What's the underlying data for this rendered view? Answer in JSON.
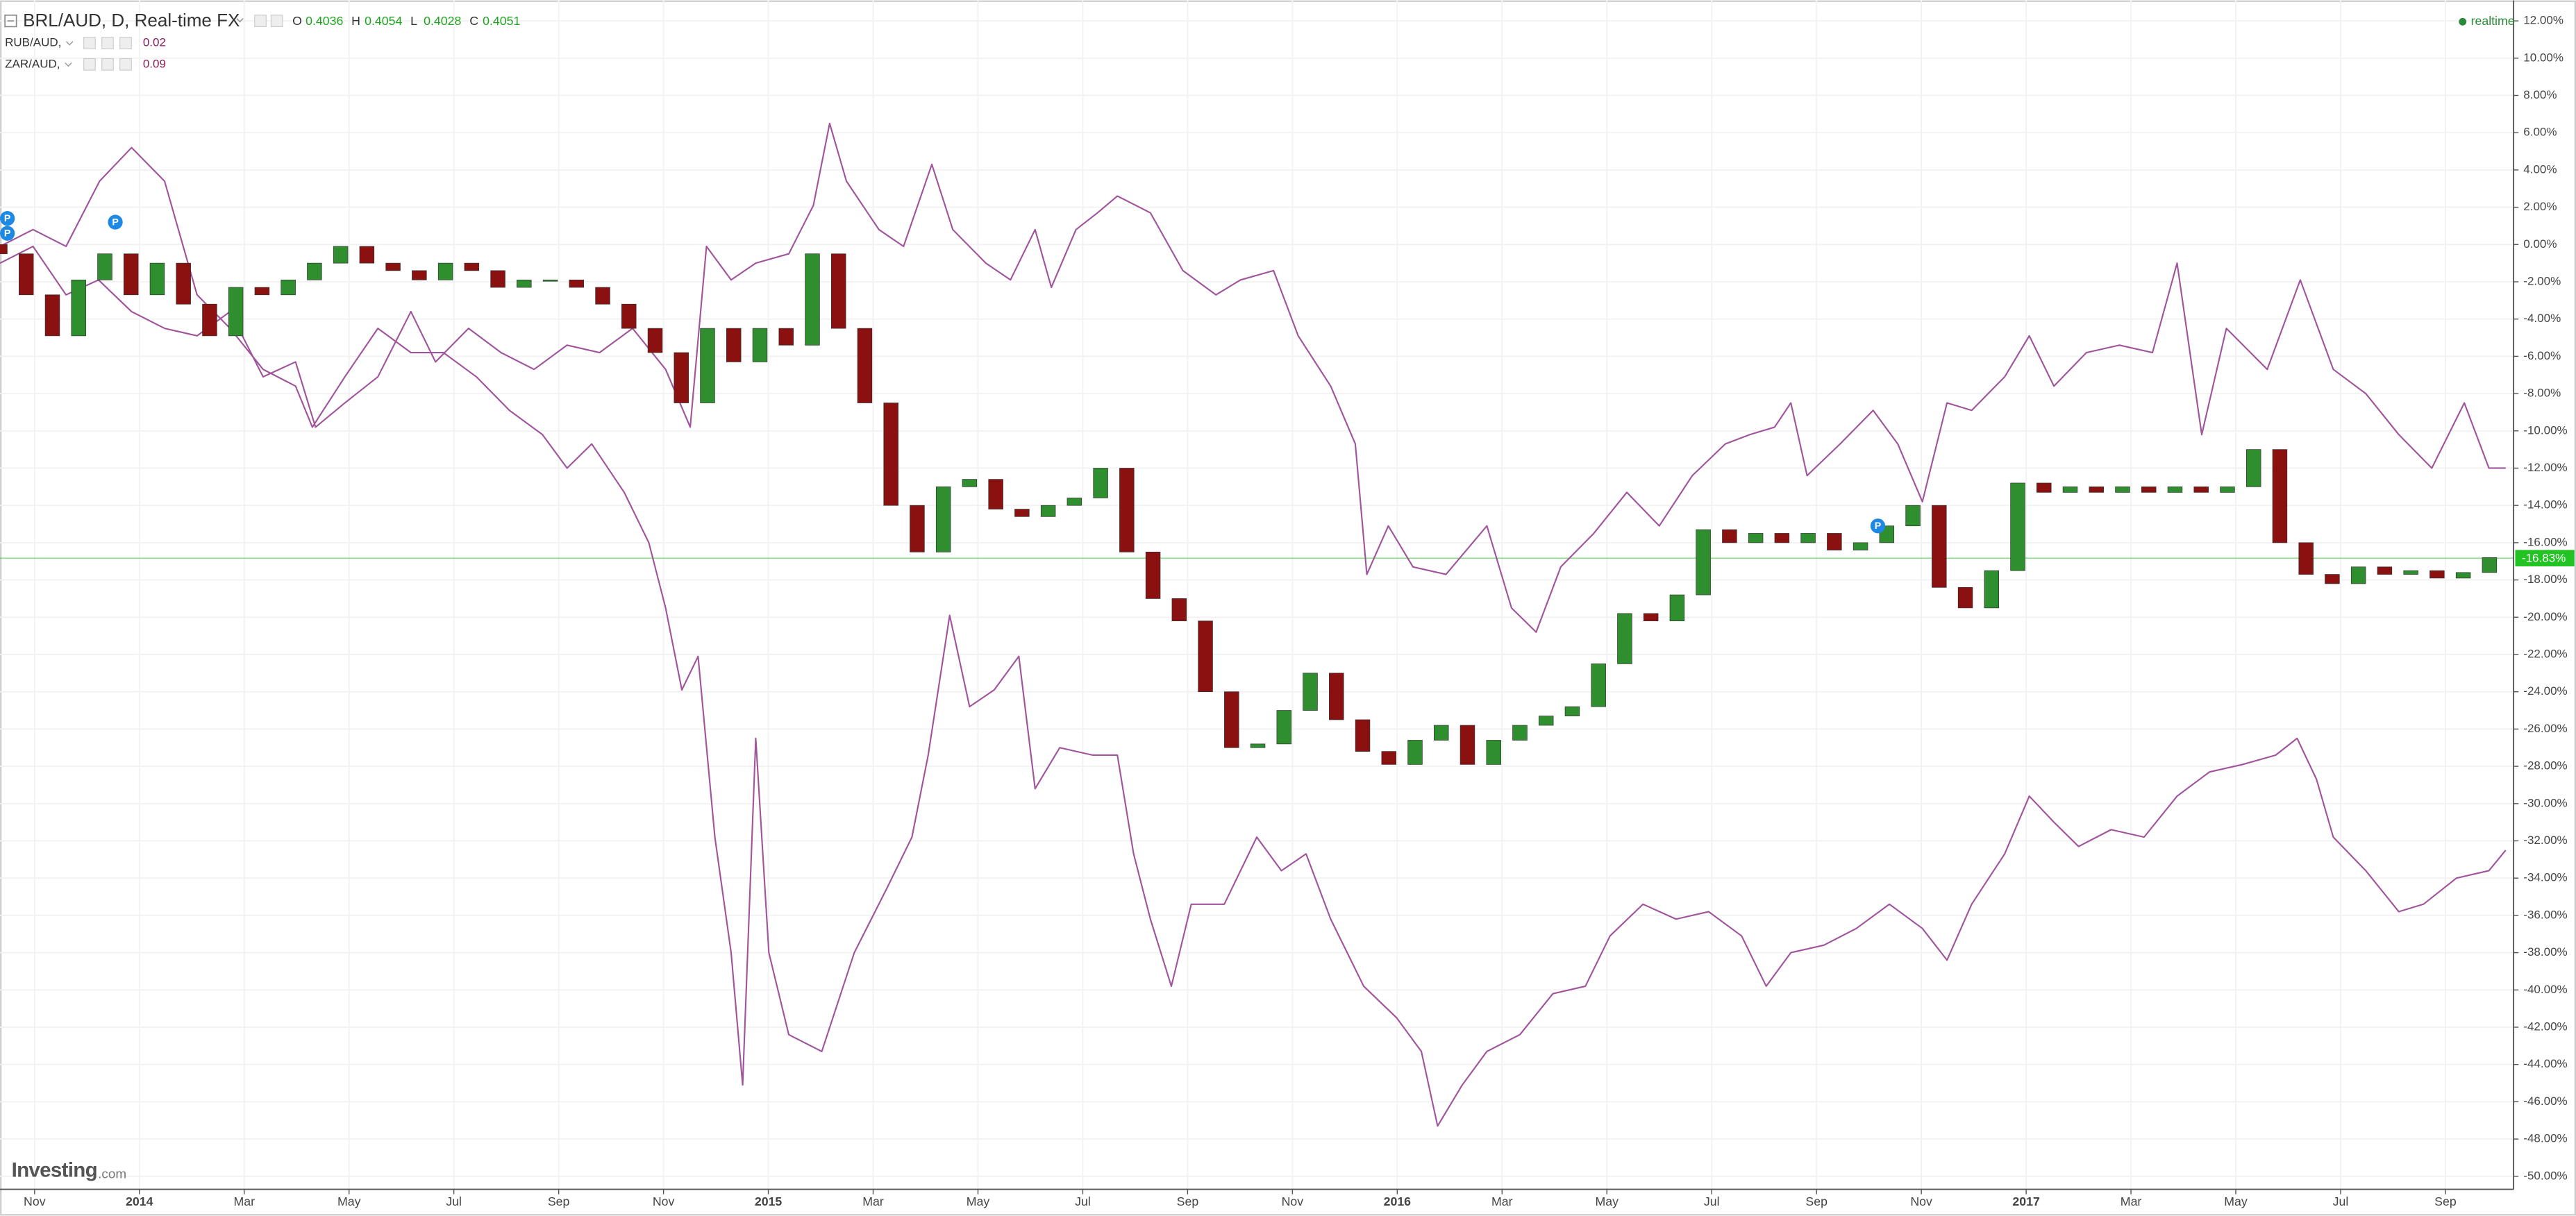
{
  "chart_data": {
    "type": "candlestick",
    "xlim": [
      -0.66,
      47.3
    ],
    "ylim": [
      -50.7,
      13.1
    ],
    "grid": true,
    "xticks": [
      {
        "value": 0,
        "label": "Nov"
      },
      {
        "value": 2,
        "label": "2014"
      },
      {
        "value": 4,
        "label": "Mar"
      },
      {
        "value": 6,
        "label": "May"
      },
      {
        "value": 8,
        "label": "Jul"
      },
      {
        "value": 10,
        "label": "Sep"
      },
      {
        "value": 12,
        "label": "Nov"
      },
      {
        "value": 14,
        "label": "2015"
      },
      {
        "value": 16,
        "label": "Mar"
      },
      {
        "value": 18,
        "label": "May"
      },
      {
        "value": 20,
        "label": "Jul"
      },
      {
        "value": 22,
        "label": "Sep"
      },
      {
        "value": 24,
        "label": "Nov"
      },
      {
        "value": 26,
        "label": "2016"
      },
      {
        "value": 28,
        "label": "Mar"
      },
      {
        "value": 30,
        "label": "May"
      },
      {
        "value": 32,
        "label": "Jul"
      },
      {
        "value": 34,
        "label": "Sep"
      },
      {
        "value": 36,
        "label": "Nov"
      },
      {
        "value": 38,
        "label": "2017"
      },
      {
        "value": 40,
        "label": "Mar"
      },
      {
        "value": 42,
        "label": "May"
      },
      {
        "value": 44,
        "label": "Jul"
      },
      {
        "value": 46,
        "label": "Sep"
      }
    ],
    "yticks": [
      {
        "value": 12,
        "label": "12.00%"
      },
      {
        "value": 10,
        "label": "10.00%"
      },
      {
        "value": 8,
        "label": "8.00%"
      },
      {
        "value": 6,
        "label": "6.00%"
      },
      {
        "value": 4,
        "label": "4.00%"
      },
      {
        "value": 2,
        "label": "2.00%"
      },
      {
        "value": 0,
        "label": "0.00%"
      },
      {
        "value": -2,
        "label": "-2.00%"
      },
      {
        "value": -4,
        "label": "-4.00%"
      },
      {
        "value": -6,
        "label": "-6.00%"
      },
      {
        "value": -8,
        "label": "-8.00%"
      },
      {
        "value": -10,
        "label": "-10.00%"
      },
      {
        "value": -12,
        "label": "-12.00%"
      },
      {
        "value": -14,
        "label": "-14.00%"
      },
      {
        "value": -16,
        "label": "-16.00%"
      },
      {
        "value": -18,
        "label": "-18.00%"
      },
      {
        "value": -20,
        "label": "-20.00%"
      },
      {
        "value": -22,
        "label": "-22.00%"
      },
      {
        "value": -24,
        "label": "-24.00%"
      },
      {
        "value": -26,
        "label": "-26.00%"
      },
      {
        "value": -28,
        "label": "-28.00%"
      },
      {
        "value": -30,
        "label": "-30.00%"
      },
      {
        "value": -32,
        "label": "-32.00%"
      },
      {
        "value": -34,
        "label": "-34.00%"
      },
      {
        "value": -36,
        "label": "-36.00%"
      },
      {
        "value": -38,
        "label": "-38.00%"
      },
      {
        "value": -40,
        "label": "-40.00%"
      },
      {
        "value": -42,
        "label": "-42.00%"
      },
      {
        "value": -44,
        "label": "-44.00%"
      },
      {
        "value": -46,
        "label": "-46.00%"
      },
      {
        "value": -48,
        "label": "-48.00%"
      },
      {
        "value": -50,
        "label": "-50.00%"
      }
    ],
    "last_value": {
      "value": -16.83,
      "label": "-16.83%",
      "color": "#22c322"
    },
    "status": "realtime",
    "watermark": [
      "Investing",
      ".com"
    ],
    "ohlc": [
      {
        "label": "O",
        "value": 0.4036
      },
      {
        "label": "H",
        "value": 0.4054
      },
      {
        "label": "L",
        "value": 0.4028
      },
      {
        "label": "C",
        "value": 0.4051
      }
    ],
    "markers": [
      {
        "x": -0.53,
        "y": 1.4,
        "label": "P"
      },
      {
        "x": -0.53,
        "y": 0.6,
        "label": "P"
      },
      {
        "x": 1.54,
        "y": 1.2,
        "label": "P"
      },
      {
        "x": 35.17,
        "y": -15.1,
        "label": "P"
      }
    ],
    "series": [
      {
        "name": "BRL/AUD, D, Real-time FX",
        "type": "candlestick",
        "up_color": "#2f8f2f",
        "down_color": "#8b1010",
        "x": [
          -0.66,
          -0.16,
          0.34,
          0.84,
          1.34,
          1.84,
          2.34,
          2.84,
          3.34,
          3.84,
          4.34,
          4.84,
          5.34,
          5.84,
          6.34,
          6.84,
          7.34,
          7.84,
          8.34,
          8.84,
          9.34,
          9.84,
          10.34,
          10.84,
          11.34,
          11.84,
          12.34,
          12.84,
          13.34,
          13.84,
          14.34,
          14.84,
          15.34,
          15.84,
          16.34,
          16.84,
          17.34,
          17.84,
          18.34,
          18.84,
          19.34,
          19.84,
          20.34,
          20.84,
          21.34,
          21.84,
          22.34,
          22.84,
          23.34,
          23.84,
          24.34,
          24.84,
          25.34,
          25.84,
          26.34,
          26.84,
          27.34,
          27.84,
          28.34,
          28.84,
          29.34,
          29.84,
          30.34,
          30.84,
          31.34,
          31.84,
          32.34,
          32.84,
          33.34,
          33.84,
          34.34,
          34.84,
          35.34,
          35.84,
          36.34,
          36.84,
          37.34,
          37.84,
          38.34,
          38.84,
          39.34,
          39.84,
          40.34,
          40.84,
          41.34,
          41.84,
          42.34,
          42.84,
          43.34,
          43.84,
          44.34,
          44.84,
          45.34,
          45.84,
          46.34,
          46.84
        ],
        "open": [
          0,
          -0.5,
          -2.7,
          -4.9,
          -1.9,
          -0.5,
          -2.7,
          -1.0,
          -3.2,
          -4.9,
          -2.3,
          -2.7,
          -1.9,
          -1.0,
          -0.1,
          -1.0,
          -1.4,
          -1.9,
          -1.0,
          -1.4,
          -2.3,
          -1.9,
          -1.9,
          -2.3,
          -3.2,
          -4.5,
          -5.8,
          -8.5,
          -4.5,
          -6.3,
          -4.5,
          -5.4,
          -0.5,
          -4.5,
          -8.5,
          -14.0,
          -16.5,
          -13.0,
          -12.6,
          -14.2,
          -14.6,
          -14.0,
          -13.6,
          -12.0,
          -16.5,
          -19.0,
          -20.2,
          -24.0,
          -27.0,
          -26.8,
          -25.0,
          -23.0,
          -25.5,
          -27.2,
          -27.9,
          -26.6,
          -25.8,
          -27.9,
          -26.6,
          -25.8,
          -25.3,
          -24.8,
          -22.5,
          -19.8,
          -20.2,
          -18.8,
          -15.3,
          -16.0,
          -15.5,
          -16.0,
          -15.5,
          -16.4,
          -16.0,
          -15.1,
          -14.0,
          -18.4,
          -19.5,
          -17.5,
          -12.8,
          -13.3,
          -13.0,
          -13.3,
          -13.0,
          -13.3,
          -13.0,
          -13.3,
          -13.0,
          -11.0,
          -16.0,
          -17.7,
          -18.2,
          -17.3,
          -17.7,
          -17.5,
          -17.9,
          -17.6
        ],
        "close": [
          -0.5,
          -2.7,
          -4.9,
          -1.9,
          -0.5,
          -2.7,
          -1.0,
          -3.2,
          -4.9,
          -2.3,
          -2.7,
          -1.9,
          -1.0,
          -0.1,
          -1.0,
          -1.4,
          -1.9,
          -1.0,
          -1.4,
          -2.3,
          -1.9,
          -1.9,
          -2.3,
          -3.2,
          -4.5,
          -5.8,
          -8.5,
          -4.5,
          -6.3,
          -4.5,
          -5.4,
          -0.5,
          -4.5,
          -8.5,
          -14.0,
          -16.5,
          -13.0,
          -12.6,
          -14.2,
          -14.6,
          -14.0,
          -13.6,
          -12.0,
          -16.5,
          -19.0,
          -20.2,
          -24.0,
          -27.0,
          -26.8,
          -25.0,
          -23.0,
          -25.5,
          -27.2,
          -27.9,
          -26.6,
          -25.8,
          -27.9,
          -26.6,
          -25.8,
          -25.3,
          -24.8,
          -22.5,
          -19.8,
          -20.2,
          -18.8,
          -15.3,
          -16.0,
          -15.5,
          -16.0,
          -15.5,
          -16.4,
          -16.0,
          -15.1,
          -14.0,
          -18.4,
          -19.5,
          -17.5,
          -12.8,
          -13.3,
          -13.0,
          -13.3,
          -13.0,
          -13.3,
          -13.0,
          -13.3,
          -13.0,
          -11.0,
          -16.0,
          -17.7,
          -18.2,
          -17.3,
          -17.7,
          -17.5,
          -17.9,
          -17.6,
          -16.8
        ]
      },
      {
        "name": "RUB/AUD,",
        "type": "line",
        "color": "#a0549c",
        "legend_value": 0.02,
        "legend_color": "#8b1a5a",
        "x": [
          -0.66,
          -0.03,
          0.6,
          1.24,
          1.85,
          2.48,
          3.1,
          3.73,
          4.36,
          4.98,
          5.3,
          5.92,
          6.55,
          7.18,
          7.8,
          8.43,
          9.06,
          9.69,
          10.16,
          10.63,
          11.25,
          11.72,
          12.04,
          12.35,
          12.66,
          12.98,
          13.29,
          13.51,
          13.76,
          14.01,
          14.39,
          15.02,
          15.64,
          16.27,
          16.74,
          17.05,
          17.46,
          17.84,
          18.31,
          18.78,
          19.09,
          19.56,
          20.19,
          20.66,
          20.97,
          21.29,
          21.69,
          22.07,
          22.7,
          23.32,
          23.79,
          24.26,
          24.73,
          25.36,
          25.99,
          26.46,
          26.77,
          27.24,
          27.71,
          28.34,
          28.97,
          29.59,
          30.06,
          30.69,
          31.32,
          31.94,
          32.57,
          33.04,
          33.51,
          34.14,
          34.76,
          35.39,
          36.02,
          36.49,
          36.96,
          37.59,
          38.06,
          38.53,
          39.0,
          39.62,
          40.25,
          40.88,
          41.5,
          42.13,
          42.76,
          43.17,
          43.54,
          43.86,
          44.48,
          45.11,
          45.58,
          46.21,
          46.83,
          47.15
        ],
        "values": [
          -0.1,
          0.8,
          -0.1,
          3.4,
          5.2,
          3.4,
          -2.7,
          -4.5,
          -6.7,
          -7.6,
          -9.8,
          -7.1,
          -4.5,
          -5.8,
          -5.8,
          -7.1,
          -8.9,
          -10.2,
          -12.0,
          -10.7,
          -13.3,
          -16.0,
          -19.5,
          -23.9,
          -22.1,
          -31.8,
          -38.0,
          -45.1,
          -26.5,
          -38.0,
          -42.4,
          -43.3,
          -38.0,
          -34.5,
          -31.8,
          -27.4,
          -19.9,
          -24.8,
          -23.9,
          -22.1,
          -29.2,
          -27.0,
          -27.4,
          -27.4,
          -32.7,
          -36.2,
          -39.8,
          -35.4,
          -35.4,
          -31.8,
          -33.6,
          -32.7,
          -36.2,
          -39.8,
          -41.5,
          -43.3,
          -47.3,
          -45.1,
          -43.3,
          -42.4,
          -40.2,
          -39.8,
          -37.1,
          -35.4,
          -36.2,
          -35.8,
          -37.1,
          -39.8,
          -38.0,
          -37.6,
          -36.7,
          -35.4,
          -36.7,
          -38.4,
          -35.4,
          -32.7,
          -29.6,
          -31.0,
          -32.3,
          -31.4,
          -31.8,
          -29.6,
          -28.3,
          -27.9,
          -27.4,
          -26.5,
          -28.7,
          -31.8,
          -33.6,
          -35.8,
          -35.4,
          -34.0,
          -33.6,
          -32.5
        ]
      },
      {
        "name": "ZAR/AUD,",
        "type": "line",
        "color": "#a0549c",
        "legend_value": 0.09,
        "legend_color": "#8b1a5a",
        "x": [
          -0.66,
          -0.03,
          0.6,
          1.22,
          1.85,
          2.48,
          3.1,
          3.73,
          4.36,
          4.98,
          5.36,
          5.92,
          6.55,
          7.18,
          7.65,
          8.28,
          8.9,
          9.53,
          10.16,
          10.78,
          11.41,
          12.04,
          12.51,
          12.82,
          13.29,
          13.76,
          14.39,
          14.86,
          15.17,
          15.49,
          16.11,
          16.58,
          17.12,
          17.52,
          18.15,
          18.62,
          19.09,
          19.4,
          19.87,
          20.28,
          20.66,
          21.29,
          21.91,
          22.54,
          23.01,
          23.64,
          24.11,
          24.73,
          25.2,
          25.42,
          25.83,
          26.3,
          26.93,
          27.71,
          28.18,
          28.65,
          29.12,
          29.75,
          30.38,
          31.0,
          31.63,
          32.26,
          32.73,
          33.2,
          33.51,
          33.82,
          34.45,
          35.08,
          35.55,
          36.02,
          36.49,
          36.96,
          37.59,
          38.06,
          38.53,
          39.15,
          39.78,
          40.41,
          40.88,
          41.35,
          41.82,
          42.6,
          43.23,
          43.86,
          44.48,
          45.11,
          45.74,
          46.36,
          46.83,
          47.15
        ],
        "values": [
          -1.0,
          -0.1,
          -2.7,
          -1.9,
          -3.6,
          -4.5,
          -4.9,
          -3.6,
          -7.1,
          -6.3,
          -9.8,
          -8.5,
          -7.1,
          -3.6,
          -6.3,
          -4.5,
          -5.8,
          -6.7,
          -5.4,
          -5.8,
          -4.5,
          -6.7,
          -9.8,
          -0.1,
          -1.9,
          -1.0,
          -0.5,
          2.1,
          6.5,
          3.4,
          0.8,
          -0.1,
          4.3,
          0.8,
          -1.0,
          -1.9,
          0.8,
          -2.3,
          0.8,
          1.7,
          2.6,
          1.7,
          -1.4,
          -2.7,
          -1.9,
          -1.4,
          -4.9,
          -7.6,
          -10.7,
          -17.7,
          -15.1,
          -17.3,
          -17.7,
          -15.1,
          -19.5,
          -20.8,
          -17.3,
          -15.5,
          -13.3,
          -15.1,
          -12.4,
          -10.7,
          -10.2,
          -9.8,
          -8.5,
          -12.4,
          -10.7,
          -8.9,
          -10.7,
          -13.8,
          -8.5,
          -8.9,
          -7.1,
          -4.9,
          -7.6,
          -5.8,
          -5.4,
          -5.8,
          -1.0,
          -10.2,
          -4.5,
          -6.7,
          -1.9,
          -6.7,
          -8.0,
          -10.2,
          -12.0,
          -8.5,
          -12.0,
          -12.0
        ]
      }
    ]
  }
}
